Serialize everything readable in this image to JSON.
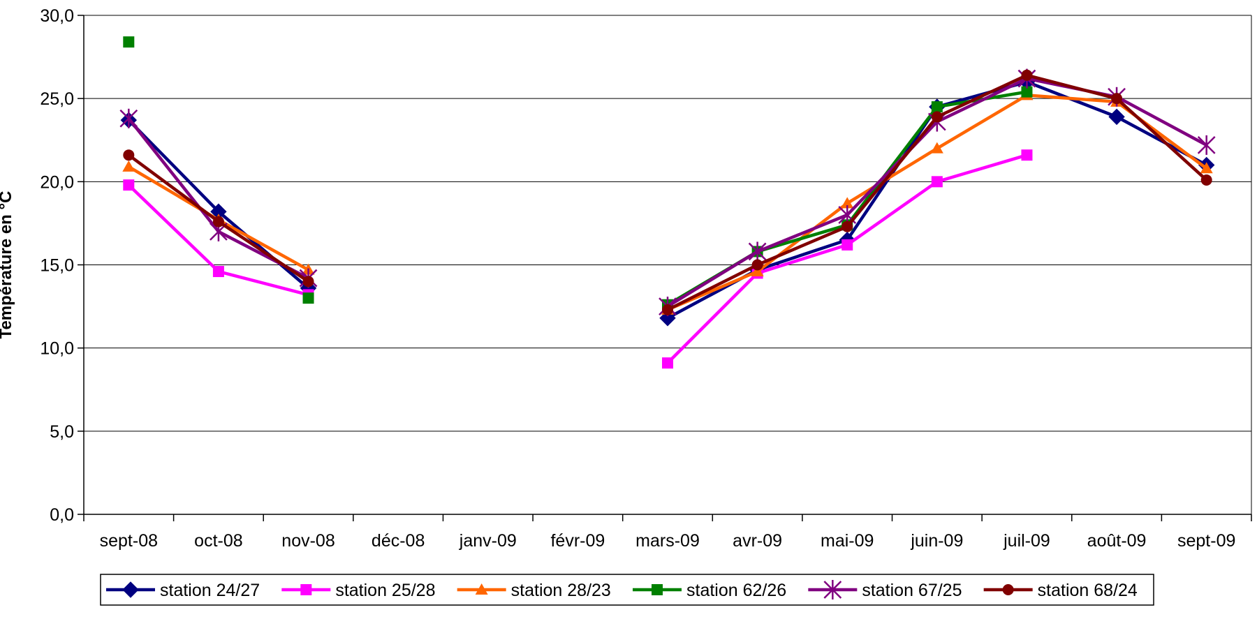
{
  "chart_data": {
    "type": "line",
    "ylabel": "Température en °C",
    "ylim": [
      0,
      30
    ],
    "y_ticks": [
      "0,0",
      "5,0",
      "10,0",
      "15,0",
      "20,0",
      "25,0",
      "30,0"
    ],
    "y_tick_values": [
      0,
      5,
      10,
      15,
      20,
      25,
      30
    ],
    "grid": true,
    "legend_position": "bottom",
    "categories": [
      "sept-08",
      "oct-08",
      "nov-08",
      "déc-08",
      "janv-09",
      "févr-09",
      "mars-09",
      "avr-09",
      "mai-09",
      "juin-09",
      "juil-09",
      "août-09",
      "sept-09"
    ],
    "series": [
      {
        "name": "station 24/27",
        "color": "#000080",
        "marker": "diamond",
        "values": [
          23.7,
          18.2,
          13.6,
          null,
          null,
          null,
          11.8,
          14.7,
          16.5,
          24.5,
          26.0,
          23.9,
          21.0
        ]
      },
      {
        "name": "station 25/28",
        "color": "#FF00FF",
        "marker": "square",
        "values": [
          19.8,
          14.6,
          13.2,
          null,
          null,
          null,
          9.1,
          14.5,
          16.2,
          20.0,
          21.6,
          null,
          null
        ]
      },
      {
        "name": "station 28/23",
        "color": "#FF6600",
        "marker": "triangle",
        "values": [
          20.9,
          17.7,
          14.7,
          null,
          null,
          null,
          12.3,
          14.6,
          18.7,
          22.0,
          25.2,
          24.8,
          20.8
        ]
      },
      {
        "name": "station 62/26",
        "color": "#008000",
        "marker": "square",
        "values": [
          28.4,
          null,
          13.0,
          null,
          null,
          null,
          12.6,
          15.8,
          17.4,
          24.5,
          25.4,
          null,
          null
        ]
      },
      {
        "name": "station 67/25",
        "color": "#800080",
        "marker": "star",
        "values": [
          23.8,
          17.0,
          14.2,
          null,
          null,
          null,
          12.5,
          15.8,
          18.0,
          23.6,
          26.2,
          25.1,
          22.2
        ]
      },
      {
        "name": "station 68/24",
        "color": "#800000",
        "marker": "circle",
        "values": [
          21.6,
          17.6,
          14.0,
          null,
          null,
          null,
          12.3,
          15.0,
          17.3,
          23.9,
          26.4,
          25.0,
          20.1
        ]
      }
    ]
  }
}
